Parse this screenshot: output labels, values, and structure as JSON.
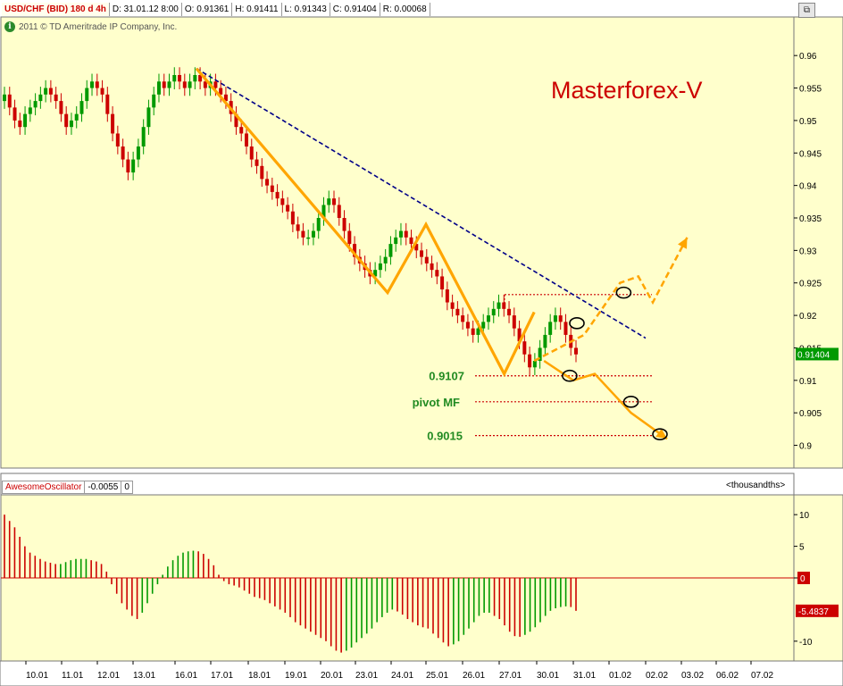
{
  "header": {
    "symbol": "USD/CHF (BID) 180 d 4h",
    "date": "D: 31.01.12 8:00",
    "open": "O: 0.91361",
    "high": "H: 0.91411",
    "low": "L: 0.91343",
    "close": "C: 0.91404",
    "range": "R: 0.00068"
  },
  "copyright": "2011 © TD Ameritrade IP Company, Inc.",
  "info_icon": "i",
  "brand": "Masterforex-V",
  "levels": {
    "l1": "0.9107",
    "pivot": "pivot MF",
    "l2": "0.9015"
  },
  "oscillator": {
    "name": "AwesomeOscillator",
    "value": "-0.0055",
    "extra": "0",
    "units": "<thousandths>",
    "zero_label": "0",
    "last_label": "-5.4837"
  },
  "colors": {
    "bg": "#ffffcc",
    "up": "#009900",
    "down": "#cc0000",
    "trend": "#ffa500",
    "dash": "#000088"
  },
  "chart_data": {
    "type": "candlestick",
    "price_axis": {
      "ylim": [
        0.8965,
        0.9625
      ],
      "ticks": [
        "0.9",
        "0.905",
        "0.91",
        "0.915",
        "0.92",
        "0.925",
        "0.93",
        "0.935",
        "0.94",
        "0.945",
        "0.95",
        "0.955",
        "0.96"
      ]
    },
    "last_price_label": "0.91404",
    "x_ticks": [
      "10.01",
      "11.01",
      "12.01",
      "13.01",
      "16.01",
      "17.01",
      "18.01",
      "19.01",
      "20.01",
      "23.01",
      "24.01",
      "25.01",
      "26.01",
      "27.01",
      "30.01",
      "31.01",
      "01.02",
      "02.02",
      "03.02",
      "06.02",
      "07.02"
    ],
    "close_path": [
      0.953,
      0.954,
      0.952,
      0.95,
      0.949,
      0.951,
      0.952,
      0.953,
      0.954,
      0.955,
      0.954,
      0.953,
      0.951,
      0.949,
      0.95,
      0.951,
      0.953,
      0.955,
      0.956,
      0.955,
      0.954,
      0.951,
      0.948,
      0.946,
      0.944,
      0.942,
      0.944,
      0.946,
      0.949,
      0.952,
      0.954,
      0.956,
      0.955,
      0.956,
      0.957,
      0.956,
      0.955,
      0.956,
      0.957,
      0.956,
      0.955,
      0.956,
      0.955,
      0.954,
      0.953,
      0.951,
      0.949,
      0.948,
      0.946,
      0.944,
      0.943,
      0.941,
      0.94,
      0.939,
      0.938,
      0.937,
      0.936,
      0.934,
      0.933,
      0.932,
      0.932,
      0.933,
      0.935,
      0.937,
      0.938,
      0.937,
      0.935,
      0.933,
      0.931,
      0.929,
      0.928,
      0.927,
      0.926,
      0.927,
      0.928,
      0.929,
      0.931,
      0.932,
      0.933,
      0.932,
      0.931,
      0.93,
      0.929,
      0.928,
      0.927,
      0.926,
      0.924,
      0.922,
      0.921,
      0.92,
      0.919,
      0.918,
      0.917,
      0.918,
      0.919,
      0.92,
      0.921,
      0.922,
      0.921,
      0.92,
      0.918,
      0.916,
      0.914,
      0.912,
      0.913,
      0.915,
      0.917,
      0.919,
      0.92,
      0.919,
      0.917,
      0.915,
      0.914
    ],
    "trend_zigzag": [
      [
        16.6,
        0.958
      ],
      [
        23.9,
        0.9235
      ],
      [
        25.0,
        0.934
      ],
      [
        27.4,
        0.911
      ],
      [
        29.8,
        0.9205
      ]
    ],
    "projection_up": [
      [
        29.8,
        0.913
      ],
      [
        31.3,
        0.917
      ],
      [
        32.3,
        0.925
      ],
      [
        32.8,
        0.926
      ],
      [
        33.2,
        0.922
      ],
      [
        34.5,
        0.932
      ]
    ],
    "projection_down": [
      [
        30.2,
        0.913
      ],
      [
        31.0,
        0.91
      ],
      [
        31.6,
        0.911
      ],
      [
        32.6,
        0.905
      ],
      [
        33.6,
        0.901
      ]
    ],
    "dashed_trendline": [
      [
        16.6,
        0.958
      ],
      [
        34.0,
        0.9165
      ]
    ],
    "level_lines": [
      0.9232,
      0.9107,
      0.9067,
      0.9015
    ],
    "ao": {
      "ylim": [
        -12,
        12
      ],
      "ticks": [
        "10",
        "5",
        "0",
        "-10"
      ],
      "values": [
        10,
        9,
        8,
        6.5,
        5,
        4,
        3.5,
        3,
        2.6,
        2.4,
        2.2,
        2.2,
        2.5,
        2.8,
        3,
        3,
        3,
        2.8,
        2.6,
        2.2,
        1,
        -1,
        -2.5,
        -4,
        -5,
        -6,
        -6.5,
        -5.5,
        -4,
        -2.5,
        -1,
        0.5,
        1.8,
        2.8,
        3.5,
        4,
        4.2,
        4.3,
        4.2,
        3.8,
        3,
        2,
        0.5,
        -0.5,
        -1,
        -1.2,
        -1.5,
        -2,
        -2.5,
        -3,
        -3.2,
        -3.5,
        -4,
        -4.5,
        -5,
        -5.5,
        -6.2,
        -7,
        -7.5,
        -8,
        -8.5,
        -9,
        -9.5,
        -10,
        -10.8,
        -11.5,
        -11.8,
        -11.5,
        -11,
        -10.2,
        -9.5,
        -8.8,
        -8,
        -7,
        -6.2,
        -5.5,
        -5,
        -5.3,
        -5.8,
        -6.5,
        -7,
        -7.5,
        -7.8,
        -8,
        -8.8,
        -9.5,
        -10.2,
        -10.8,
        -10.5,
        -10,
        -9,
        -8,
        -7,
        -6,
        -5.5,
        -5.5,
        -6,
        -6.5,
        -7.5,
        -8.5,
        -9.2,
        -9.3,
        -9,
        -8.5,
        -7.8,
        -7,
        -6,
        -5.2,
        -4.8,
        -4.6,
        -4.5,
        -4.6,
        -5.2
      ]
    }
  }
}
